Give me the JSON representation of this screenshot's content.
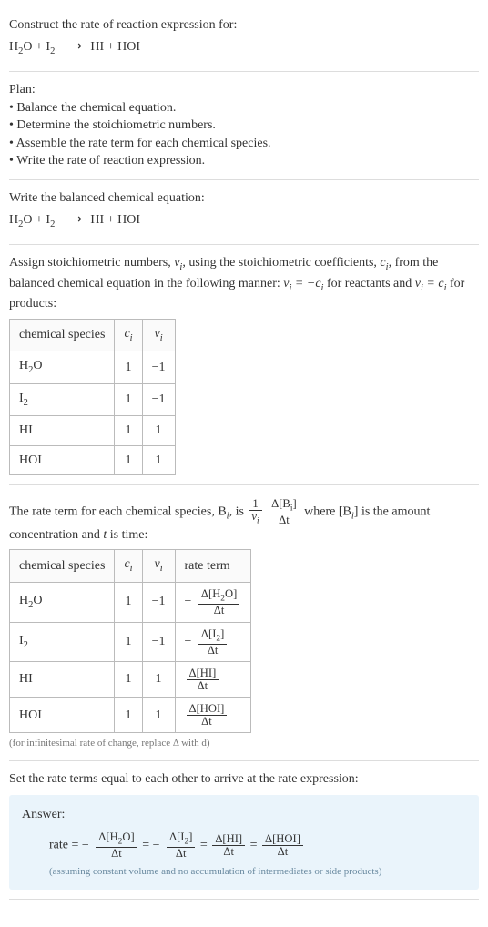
{
  "header": {
    "prompt": "Construct the rate of reaction expression for:",
    "eq_lhs1": "H",
    "eq_lhs1_sub": "2",
    "eq_lhs1b": "O",
    "eq_plus1": " + ",
    "eq_lhs2": "I",
    "eq_lhs2_sub": "2",
    "eq_arrow": "⟶",
    "eq_rhs1": "HI",
    "eq_plus2": " + ",
    "eq_rhs2": "HOI"
  },
  "plan": {
    "title": "Plan:",
    "items": [
      "Balance the chemical equation.",
      "Determine the stoichiometric numbers.",
      "Assemble the rate term for each chemical species.",
      "Write the rate of reaction expression."
    ]
  },
  "balanced": {
    "intro": "Write the balanced chemical equation:"
  },
  "assign": {
    "text1": "Assign stoichiometric numbers, ",
    "nu": "ν",
    "nu_sub": "i",
    "text2": ", using the stoichiometric coefficients, ",
    "c": "c",
    "c_sub": "i",
    "text3": ", from the balanced chemical equation in the following manner: ",
    "eqA_l": "ν",
    "eqA_lsub": "i",
    "eqA_mid": " = −",
    "eqA_r": "c",
    "eqA_rsub": "i",
    "text4": " for reactants and ",
    "eqB_l": "ν",
    "eqB_lsub": "i",
    "eqB_mid": " = ",
    "eqB_r": "c",
    "eqB_rsub": "i",
    "text5": " for products:"
  },
  "table1": {
    "headers": {
      "species": "chemical species",
      "c": "c",
      "c_sub": "i",
      "nu": "ν",
      "nu_sub": "i"
    },
    "rows": [
      {
        "sp_a": "H",
        "sp_a_sub": "2",
        "sp_b": "O",
        "sp_c": "",
        "sp_c_sub": "",
        "c": "1",
        "nu": "−1"
      },
      {
        "sp_a": "I",
        "sp_a_sub": "2",
        "sp_b": "",
        "sp_c": "",
        "sp_c_sub": "",
        "c": "1",
        "nu": "−1"
      },
      {
        "sp_a": "HI",
        "sp_a_sub": "",
        "sp_b": "",
        "sp_c": "",
        "sp_c_sub": "",
        "c": "1",
        "nu": "1"
      },
      {
        "sp_a": "HOI",
        "sp_a_sub": "",
        "sp_b": "",
        "sp_c": "",
        "sp_c_sub": "",
        "c": "1",
        "nu": "1"
      }
    ]
  },
  "rateintro": {
    "t1": "The rate term for each chemical species, B",
    "t1_sub": "i",
    "t2": ", is ",
    "frac1_num": "1",
    "frac1_den_a": "ν",
    "frac1_den_sub": "i",
    "frac2_num_a": "Δ[B",
    "frac2_num_sub": "i",
    "frac2_num_b": "]",
    "frac2_den": "Δt",
    "t3": " where [B",
    "t3_sub": "i",
    "t3b": "] is the amount concentration and ",
    "tvar": "t",
    "t4": " is time:"
  },
  "table2": {
    "headers": {
      "species": "chemical species",
      "c": "c",
      "c_sub": "i",
      "nu": "ν",
      "nu_sub": "i",
      "rate": "rate term"
    },
    "rows": [
      {
        "sp_a": "H",
        "sp_a_sub": "2",
        "sp_b": "O",
        "c": "1",
        "nu": "−1",
        "neg": "−",
        "num_a": "Δ[H",
        "num_sub": "2",
        "num_b": "O]",
        "den": "Δt"
      },
      {
        "sp_a": "I",
        "sp_a_sub": "2",
        "sp_b": "",
        "c": "1",
        "nu": "−1",
        "neg": "−",
        "num_a": "Δ[I",
        "num_sub": "2",
        "num_b": "]",
        "den": "Δt"
      },
      {
        "sp_a": "HI",
        "sp_a_sub": "",
        "sp_b": "",
        "c": "1",
        "nu": "1",
        "neg": "",
        "num_a": "Δ[HI]",
        "num_sub": "",
        "num_b": "",
        "den": "Δt"
      },
      {
        "sp_a": "HOI",
        "sp_a_sub": "",
        "sp_b": "",
        "c": "1",
        "nu": "1",
        "neg": "",
        "num_a": "Δ[HOI]",
        "num_sub": "",
        "num_b": "",
        "den": "Δt"
      }
    ],
    "note": "(for infinitesimal rate of change, replace Δ with d)"
  },
  "final_intro": "Set the rate terms equal to each other to arrive at the rate expression:",
  "answer": {
    "label": "Answer:",
    "rate_label": "rate = ",
    "neg1": "−",
    "t1_num_a": "Δ[H",
    "t1_num_sub": "2",
    "t1_num_b": "O]",
    "t1_den": "Δt",
    "eq1": " = ",
    "neg2": "−",
    "t2_num_a": "Δ[I",
    "t2_num_sub": "2",
    "t2_num_b": "]",
    "t2_den": "Δt",
    "eq2": " = ",
    "t3_num": "Δ[HI]",
    "t3_den": "Δt",
    "eq3": " = ",
    "t4_num": "Δ[HOI]",
    "t4_den": "Δt",
    "note": "(assuming constant volume and no accumulation of intermediates or side products)"
  }
}
